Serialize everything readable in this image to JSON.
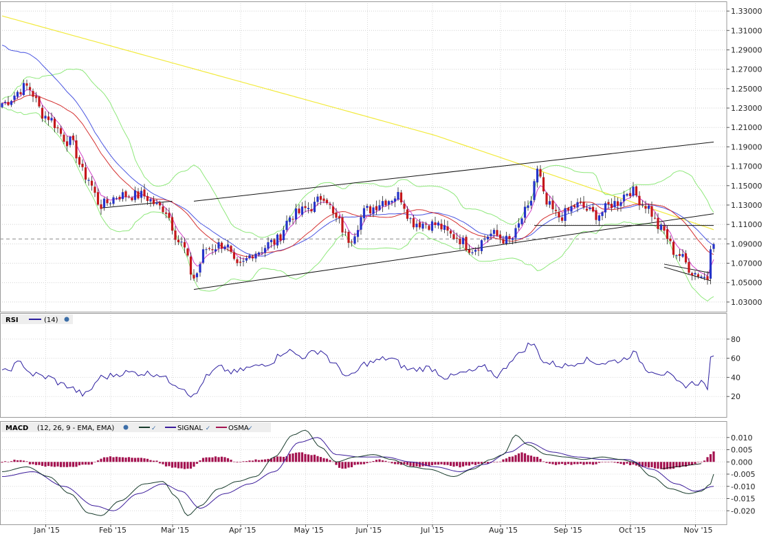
{
  "chart_data": [
    {
      "type": "candlestick",
      "panel": "price",
      "ylim": [
        1.02,
        1.34
      ],
      "ytick_labels": [
        "1.33000",
        "1.31000",
        "1.29000",
        "1.27000",
        "1.25000",
        "1.23000",
        "1.21000",
        "1.19000",
        "1.17000",
        "1.15000",
        "1.13000",
        "1.11000",
        "1.09000",
        "1.07000",
        "1.05000",
        "1.03000"
      ],
      "yticks": [
        1.33,
        1.31,
        1.29,
        1.27,
        1.25,
        1.23,
        1.21,
        1.19,
        1.17,
        1.15,
        1.13,
        1.11,
        1.09,
        1.07,
        1.05,
        1.03
      ],
      "x_months": [
        "Jan '15",
        "Feb '15",
        "Mar '15",
        "Apr '15",
        "May '15",
        "Jun '15",
        "Jul '15",
        "Aug '15",
        "Sep '15",
        "Oct '15",
        "Nov '15"
      ],
      "bars": 231,
      "close_anchors": [
        [
          0,
          1.235
        ],
        [
          8,
          1.252
        ],
        [
          14,
          1.222
        ],
        [
          22,
          1.195
        ],
        [
          27,
          1.16
        ],
        [
          32,
          1.13
        ],
        [
          38,
          1.14
        ],
        [
          45,
          1.14
        ],
        [
          52,
          1.127
        ],
        [
          58,
          1.09
        ],
        [
          62,
          1.055
        ],
        [
          66,
          1.085
        ],
        [
          72,
          1.09
        ],
        [
          76,
          1.065
        ],
        [
          82,
          1.082
        ],
        [
          88,
          1.092
        ],
        [
          94,
          1.12
        ],
        [
          100,
          1.128
        ],
        [
          104,
          1.14
        ],
        [
          108,
          1.115
        ],
        [
          112,
          1.095
        ],
        [
          118,
          1.125
        ],
        [
          124,
          1.135
        ],
        [
          128,
          1.14
        ],
        [
          133,
          1.112
        ],
        [
          140,
          1.11
        ],
        [
          146,
          1.098
        ],
        [
          152,
          1.085
        ],
        [
          158,
          1.1
        ],
        [
          164,
          1.093
        ],
        [
          170,
          1.125
        ],
        [
          173,
          1.165
        ],
        [
          176,
          1.13
        ],
        [
          180,
          1.118
        ],
        [
          186,
          1.13
        ],
        [
          192,
          1.12
        ],
        [
          198,
          1.132
        ],
        [
          203,
          1.145
        ],
        [
          208,
          1.13
        ],
        [
          213,
          1.105
        ],
        [
          218,
          1.08
        ],
        [
          224,
          1.06
        ],
        [
          228,
          1.055
        ],
        [
          229,
          1.09
        ],
        [
          230,
          1.095
        ]
      ],
      "grid": true,
      "reference_line": 1.095
    },
    {
      "type": "line",
      "panel": "rsi",
      "title": "RSI",
      "series": [
        {
          "name": "(14)",
          "color": "#2a1c9e"
        }
      ],
      "ylim": [
        0,
        100
      ],
      "yticks": [
        20,
        40,
        60,
        80
      ],
      "ytick_labels": [
        "20",
        "40",
        "60",
        "80"
      ],
      "anchors": [
        [
          0,
          45
        ],
        [
          6,
          55
        ],
        [
          10,
          43
        ],
        [
          15,
          40
        ],
        [
          20,
          32
        ],
        [
          27,
          22
        ],
        [
          32,
          40
        ],
        [
          40,
          45
        ],
        [
          50,
          44
        ],
        [
          55,
          35
        ],
        [
          58,
          30
        ],
        [
          62,
          20
        ],
        [
          66,
          40
        ],
        [
          70,
          50
        ],
        [
          75,
          45
        ],
        [
          80,
          50
        ],
        [
          86,
          55
        ],
        [
          92,
          68
        ],
        [
          97,
          62
        ],
        [
          103,
          68
        ],
        [
          108,
          52
        ],
        [
          112,
          40
        ],
        [
          118,
          55
        ],
        [
          125,
          60
        ],
        [
          132,
          48
        ],
        [
          138,
          50
        ],
        [
          144,
          40
        ],
        [
          150,
          45
        ],
        [
          156,
          50
        ],
        [
          160,
          42
        ],
        [
          166,
          62
        ],
        [
          171,
          75
        ],
        [
          176,
          55
        ],
        [
          182,
          52
        ],
        [
          188,
          58
        ],
        [
          194,
          55
        ],
        [
          200,
          58
        ],
        [
          204,
          65
        ],
        [
          209,
          48
        ],
        [
          214,
          44
        ],
        [
          220,
          32
        ],
        [
          226,
          35
        ],
        [
          228,
          30
        ],
        [
          229,
          58
        ],
        [
          230,
          60
        ]
      ]
    },
    {
      "type": "line",
      "panel": "macd",
      "title": "MACD",
      "params": "(12, 26, 9 - EMA, EMA)",
      "series": [
        {
          "name": "MACD",
          "color": "#163a2a"
        },
        {
          "name": "SIGNAL",
          "color": "#3a1a9a"
        },
        {
          "name": "OSMA",
          "color": "#a3124f"
        }
      ],
      "ylim": [
        -0.025,
        0.015
      ],
      "yticks": [
        0.01,
        0.005,
        0.0,
        -0.005,
        -0.01,
        -0.015,
        -0.02
      ],
      "ytick_labels": [
        "0.010",
        "0.005",
        "0.000",
        "-0.005",
        "-0.010",
        "-0.015",
        "-0.020"
      ],
      "macd_anchors": [
        [
          0,
          -0.004
        ],
        [
          8,
          -0.002
        ],
        [
          15,
          -0.006
        ],
        [
          22,
          -0.013
        ],
        [
          28,
          -0.021
        ],
        [
          32,
          -0.022
        ],
        [
          38,
          -0.016
        ],
        [
          46,
          -0.009
        ],
        [
          52,
          -0.008
        ],
        [
          56,
          -0.014
        ],
        [
          60,
          -0.022
        ],
        [
          64,
          -0.018
        ],
        [
          70,
          -0.011
        ],
        [
          76,
          -0.008
        ],
        [
          82,
          -0.006
        ],
        [
          88,
          0.002
        ],
        [
          94,
          0.011
        ],
        [
          98,
          0.013
        ],
        [
          103,
          0.006
        ],
        [
          108,
          0.0
        ],
        [
          114,
          0.002
        ],
        [
          120,
          0.003
        ],
        [
          126,
          0.001
        ],
        [
          132,
          -0.002
        ],
        [
          138,
          -0.003
        ],
        [
          146,
          -0.006
        ],
        [
          152,
          -0.003
        ],
        [
          158,
          0.001
        ],
        [
          162,
          0.003
        ],
        [
          166,
          0.011
        ],
        [
          170,
          0.007
        ],
        [
          176,
          0.003
        ],
        [
          182,
          0.002
        ],
        [
          188,
          0.001
        ],
        [
          194,
          0.002
        ],
        [
          200,
          0.001
        ],
        [
          204,
          0.0
        ],
        [
          210,
          -0.006
        ],
        [
          216,
          -0.011
        ],
        [
          222,
          -0.013
        ],
        [
          226,
          -0.012
        ],
        [
          229,
          -0.009
        ],
        [
          230,
          -0.005
        ]
      ],
      "signal_anchors": [
        [
          0,
          -0.006
        ],
        [
          10,
          -0.004
        ],
        [
          20,
          -0.01
        ],
        [
          30,
          -0.018
        ],
        [
          36,
          -0.02
        ],
        [
          44,
          -0.013
        ],
        [
          52,
          -0.009
        ],
        [
          58,
          -0.012
        ],
        [
          64,
          -0.019
        ],
        [
          72,
          -0.013
        ],
        [
          80,
          -0.009
        ],
        [
          88,
          -0.004
        ],
        [
          96,
          0.008
        ],
        [
          102,
          0.01
        ],
        [
          108,
          0.003
        ],
        [
          116,
          0.002
        ],
        [
          124,
          0.002
        ],
        [
          132,
          0.0
        ],
        [
          140,
          -0.002
        ],
        [
          148,
          -0.004
        ],
        [
          156,
          -0.001
        ],
        [
          164,
          0.004
        ],
        [
          170,
          0.008
        ],
        [
          178,
          0.004
        ],
        [
          186,
          0.002
        ],
        [
          194,
          0.001
        ],
        [
          202,
          0.001
        ],
        [
          210,
          -0.003
        ],
        [
          218,
          -0.009
        ],
        [
          224,
          -0.012
        ],
        [
          230,
          -0.01
        ]
      ],
      "osma_anchors": [
        [
          0,
          0.0
        ],
        [
          6,
          0.001
        ],
        [
          10,
          -0.001
        ],
        [
          16,
          -0.002
        ],
        [
          22,
          -0.002
        ],
        [
          28,
          -0.001
        ],
        [
          34,
          0.002
        ],
        [
          42,
          0.002
        ],
        [
          48,
          0.001
        ],
        [
          54,
          -0.002
        ],
        [
          60,
          -0.003
        ],
        [
          66,
          0.002
        ],
        [
          72,
          0.002
        ],
        [
          76,
          0.0
        ],
        [
          84,
          0.001
        ],
        [
          90,
          0.002
        ],
        [
          96,
          0.004
        ],
        [
          100,
          0.003
        ],
        [
          106,
          0.001
        ],
        [
          110,
          -0.003
        ],
        [
          116,
          -0.001
        ],
        [
          122,
          0.001
        ],
        [
          128,
          -0.001
        ],
        [
          134,
          -0.002
        ],
        [
          142,
          -0.001
        ],
        [
          148,
          -0.002
        ],
        [
          154,
          -0.001
        ],
        [
          160,
          0.0
        ],
        [
          164,
          0.002
        ],
        [
          168,
          0.004
        ],
        [
          172,
          0.002
        ],
        [
          178,
          -0.001
        ],
        [
          184,
          -0.001
        ],
        [
          190,
          -0.001
        ],
        [
          196,
          0.0
        ],
        [
          202,
          -0.001
        ],
        [
          208,
          -0.002
        ],
        [
          214,
          -0.003
        ],
        [
          220,
          -0.002
        ],
        [
          226,
          0.0
        ],
        [
          229,
          0.003
        ],
        [
          230,
          0.004
        ]
      ]
    }
  ]
}
